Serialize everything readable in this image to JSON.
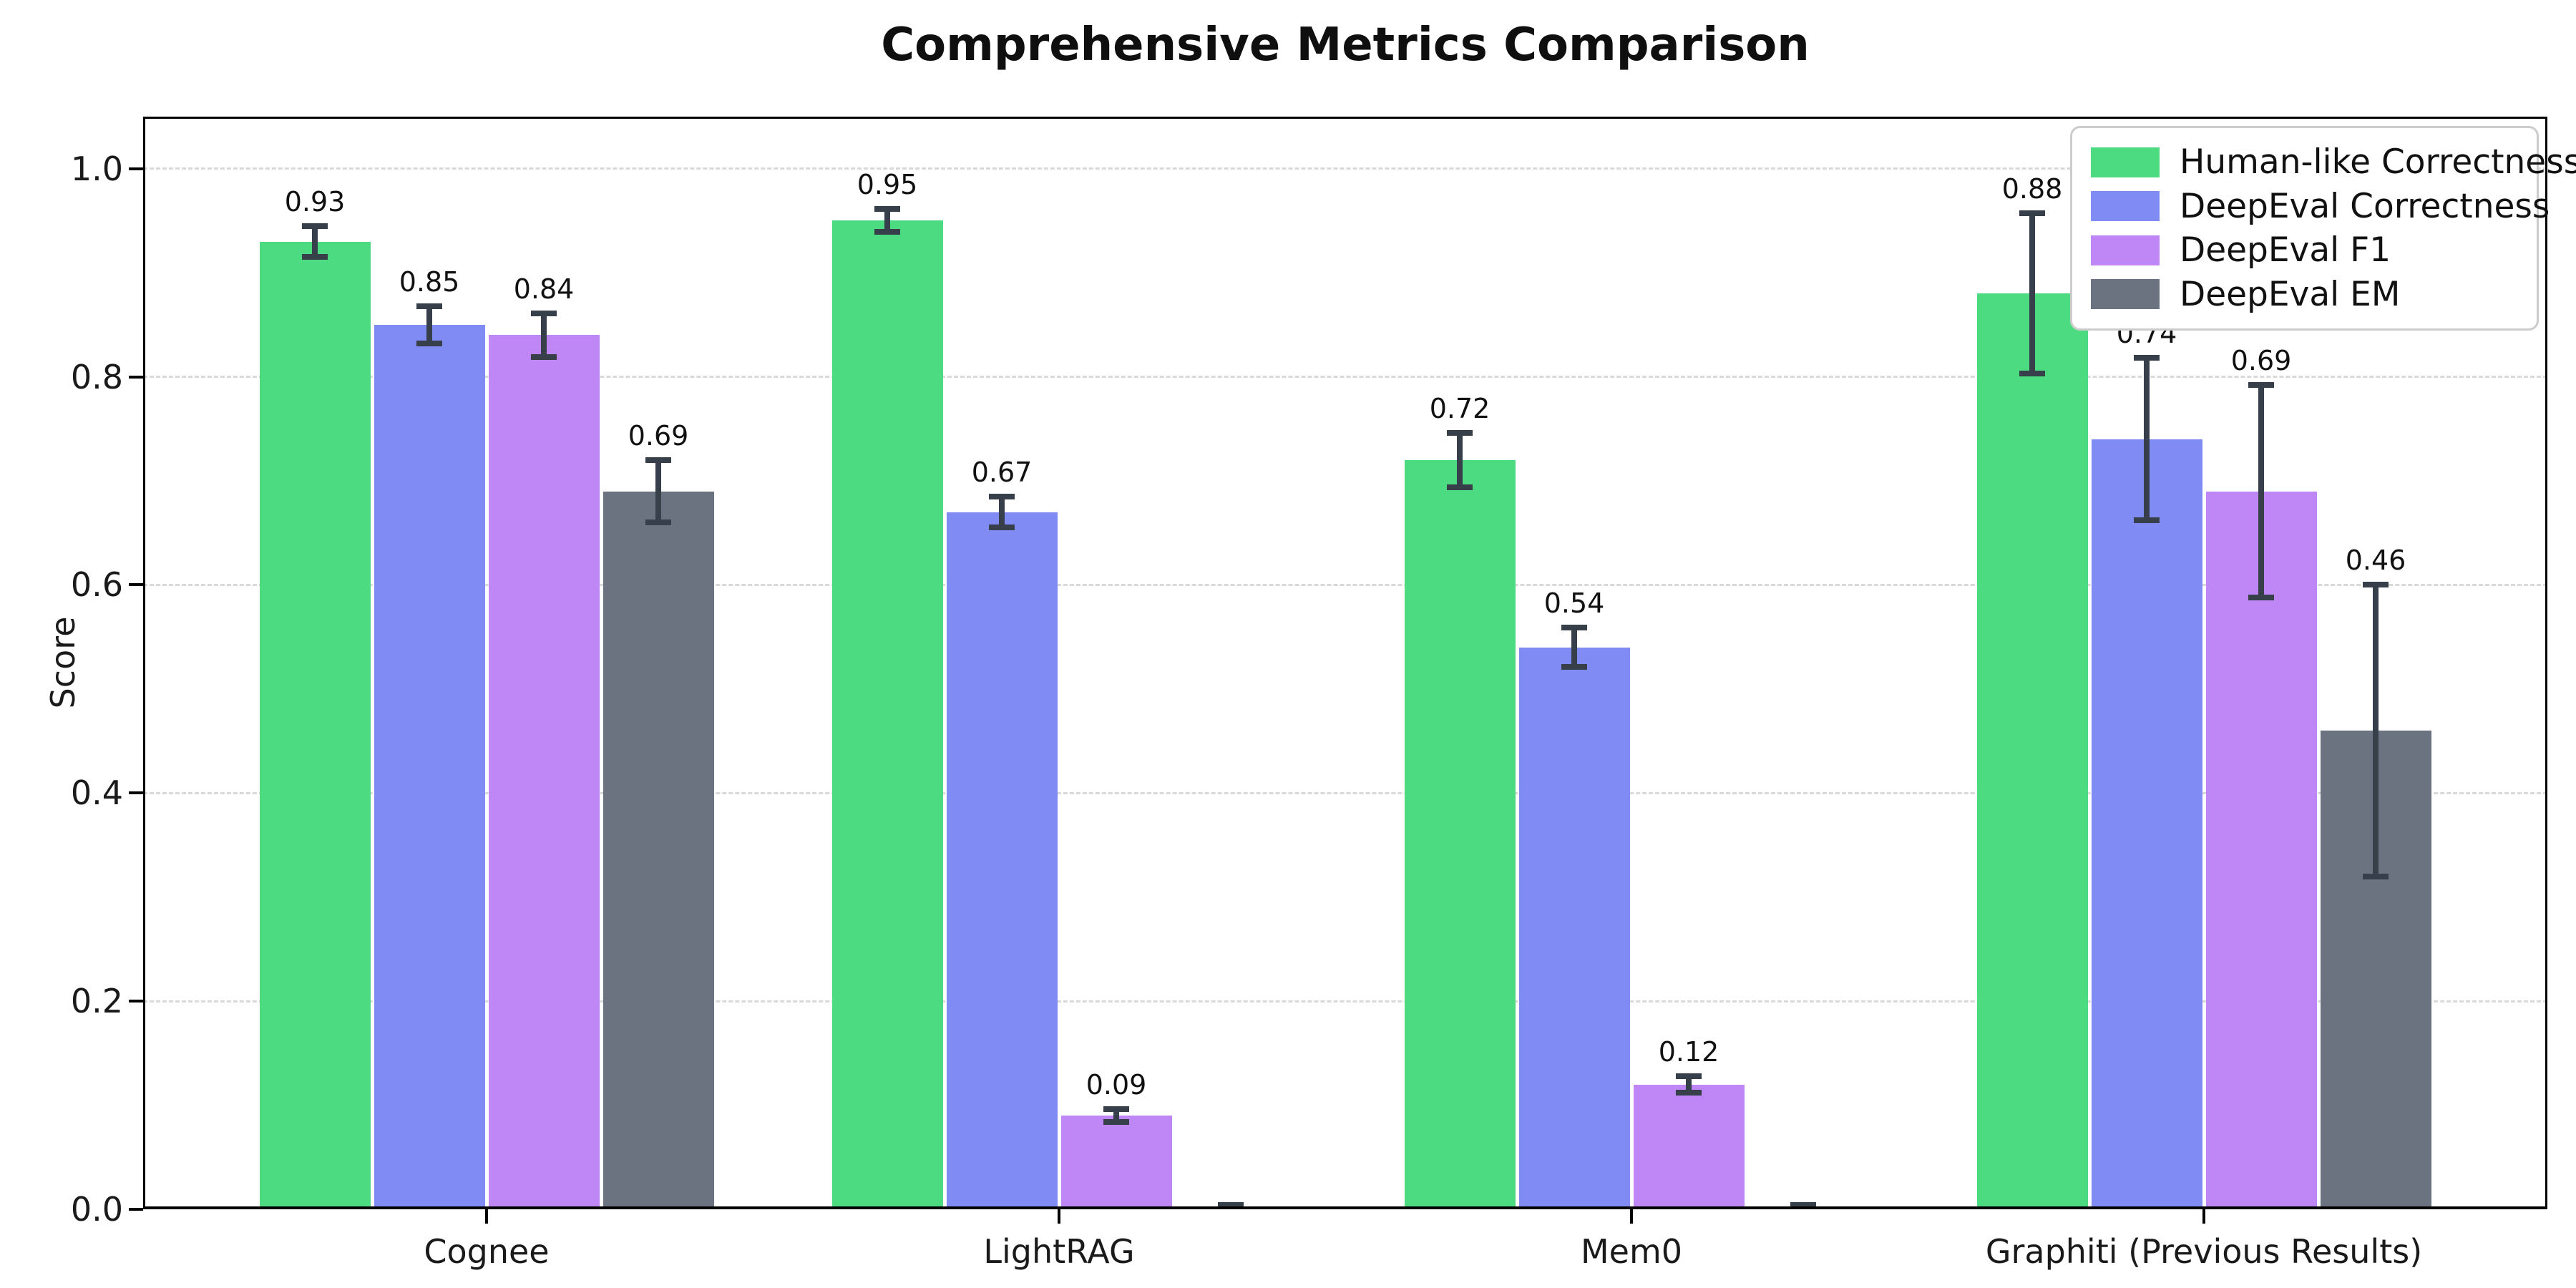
{
  "chart_data": {
    "type": "bar",
    "title": "Comprehensive Metrics Comparison",
    "xlabel": "",
    "ylabel": "Score",
    "categories": [
      "Cognee",
      "LightRAG",
      "Mem0",
      "Graphiti (Previous Results)"
    ],
    "ylim": [
      0,
      1.05
    ],
    "yticks": [
      "0.0",
      "0.2",
      "0.4",
      "0.6",
      "0.8",
      "1.0"
    ],
    "ytick_values": [
      0.0,
      0.2,
      0.4,
      0.6,
      0.8,
      1.0
    ],
    "grid": "horizontal dashed gridlines at y ticks",
    "legend_position": "upper right",
    "bar_width_fraction": 0.2,
    "x_padding": 0.6,
    "error_bar_color": "#37404a",
    "background_color": "#ffffff",
    "gridline_color": "#d9d9d9",
    "series": [
      {
        "name": "Human-like Correctness",
        "color": "#4cdb80",
        "values": [
          0.93,
          0.95,
          0.72,
          0.88
        ],
        "errors": [
          0.015,
          0.011,
          0.026,
          0.077
        ],
        "labels": [
          "0.93",
          "0.95",
          "0.72",
          "0.88"
        ]
      },
      {
        "name": "DeepEval Correctness",
        "color": "#808cf3",
        "values": [
          0.85,
          0.67,
          0.54,
          0.74
        ],
        "errors": [
          0.018,
          0.015,
          0.019,
          0.078
        ],
        "labels": [
          "0.85",
          "0.67",
          "0.54",
          "0.74"
        ]
      },
      {
        "name": "DeepEval F1",
        "color": "#bf87f5",
        "values": [
          0.84,
          0.09,
          0.12,
          0.69
        ],
        "errors": [
          0.021,
          0.006,
          0.008,
          0.102
        ],
        "labels": [
          "0.84",
          "0.09",
          "0.12",
          "0.69"
        ]
      },
      {
        "name": "DeepEval EM",
        "color": "#6b7280",
        "values": [
          0.69,
          0.0,
          0.0,
          0.46
        ],
        "errors": [
          0.03,
          0.004,
          0.004,
          0.14
        ],
        "labels": [
          "0.69",
          "",
          "",
          "0.46"
        ]
      }
    ]
  }
}
